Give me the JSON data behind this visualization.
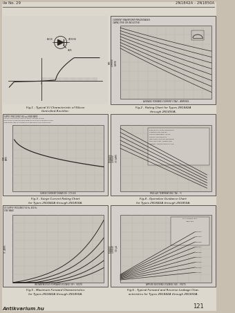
{
  "page_bg": "#c8bfb0",
  "page_inner_bg": "#ddd8ce",
  "chart_bg": "#d4cfca",
  "chart_grid_bg": "#c8c4bc",
  "grid_line_color": "#b0aba3",
  "dark_line": "#2a2520",
  "header_left": "ile No. 29",
  "header_right": "2N1842A - 2N1850A",
  "page_number": "121",
  "watermark": "Antikvarium.hu",
  "caption_color": "#1a1510",
  "figures": [
    {
      "id": 1,
      "col": 0,
      "row": 0,
      "type": "vi_char",
      "caption1": "Fig.1 - Typical V-I Characteristic of Silicon",
      "caption2": "Controlled-Rectifier."
    },
    {
      "id": 2,
      "col": 1,
      "row": 0,
      "type": "rating",
      "caption1": "Fig.2 - Rating Chart for Types 2N1842A",
      "caption2": "through 2N1850A."
    },
    {
      "id": 3,
      "col": 0,
      "row": 1,
      "type": "surge",
      "caption1": "Fig.3 - Surge Current Rating Chart",
      "caption2": "for Types 2N1842A through 2N1850A."
    },
    {
      "id": 4,
      "col": 1,
      "row": 1,
      "type": "operation",
      "caption1": "Fig.4 - Operation Guidance Chart",
      "caption2": "for Types 2N1842A through 2N1850A."
    },
    {
      "id": 5,
      "col": 0,
      "row": 2,
      "type": "forward",
      "caption1": "Fig.5 - Maximum Forward Characteristics",
      "caption2": "for Types 2N1842A through 2N1850A."
    },
    {
      "id": 6,
      "col": 1,
      "row": 2,
      "type": "leakage",
      "caption1": "Fig.6 - Typical Forward and Reverse Leakage Char-",
      "caption2": "acteristics for Types 2N1842A through 2N1850A."
    }
  ]
}
